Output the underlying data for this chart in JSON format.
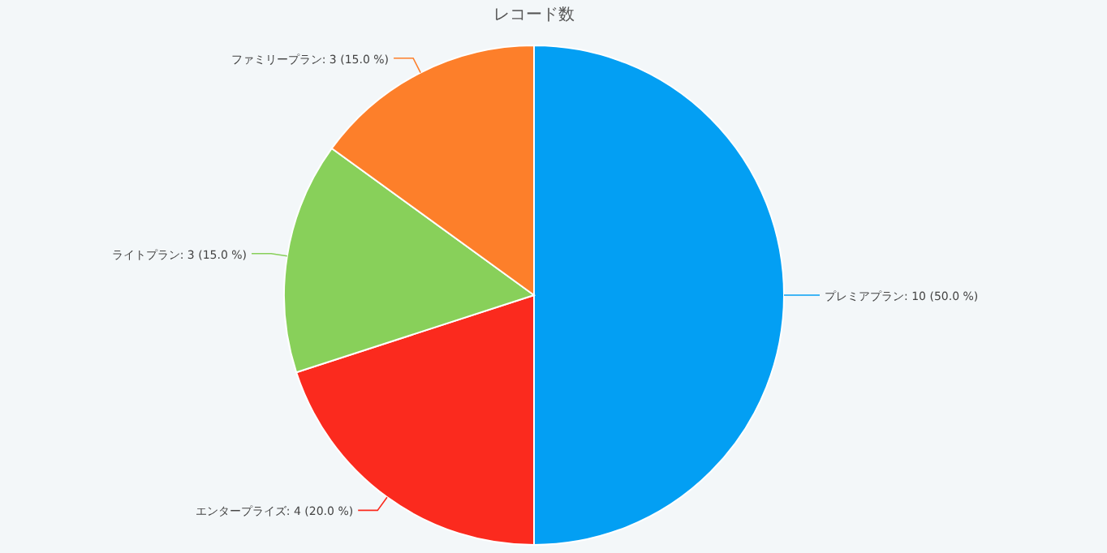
{
  "chart_data": {
    "type": "pie",
    "title": "レコード数",
    "categories": [
      "プレミアプラン",
      "エンタープライズ",
      "ライトプラン",
      "ファミリープラン"
    ],
    "values": [
      10,
      4,
      3,
      3
    ],
    "colors": [
      "#039ff3",
      "#fb2a1e",
      "#88d05a",
      "#fd7f2a"
    ],
    "value_labels": [
      "10 (50.0 %)",
      "4 (20.0 %)",
      "3 (15.0 %)",
      "3 (15.0 %)"
    ]
  }
}
